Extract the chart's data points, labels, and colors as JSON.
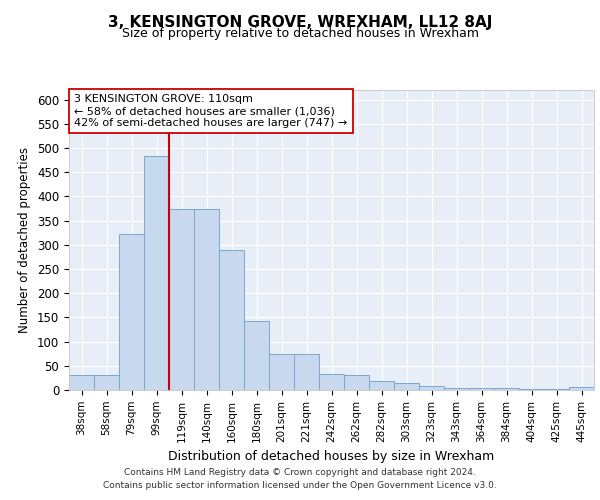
{
  "title": "3, KENSINGTON GROVE, WREXHAM, LL12 8AJ",
  "subtitle": "Size of property relative to detached houses in Wrexham",
  "xlabel": "Distribution of detached houses by size in Wrexham",
  "ylabel": "Number of detached properties",
  "categories": [
    "38sqm",
    "58sqm",
    "79sqm",
    "99sqm",
    "119sqm",
    "140sqm",
    "160sqm",
    "180sqm",
    "201sqm",
    "221sqm",
    "242sqm",
    "262sqm",
    "282sqm",
    "303sqm",
    "323sqm",
    "343sqm",
    "364sqm",
    "384sqm",
    "404sqm",
    "425sqm",
    "445sqm"
  ],
  "values": [
    32,
    32,
    322,
    483,
    375,
    375,
    290,
    143,
    75,
    75,
    34,
    30,
    18,
    15,
    8,
    5,
    5,
    4,
    3,
    3,
    6
  ],
  "bar_color": "#c8d8ee",
  "bar_edge_color": "#7aa8cc",
  "background_color": "#e8eef8",
  "red_line_x": 3.5,
  "annotation_text": "3 KENSINGTON GROVE: 110sqm\n← 58% of detached houses are smaller (1,036)\n42% of semi-detached houses are larger (747) →",
  "annotation_box_color": "#ffffff",
  "annotation_box_edge": "#cc0000",
  "footer_line1": "Contains HM Land Registry data © Crown copyright and database right 2024.",
  "footer_line2": "Contains public sector information licensed under the Open Government Licence v3.0.",
  "ylim": [
    0,
    620
  ],
  "yticks": [
    0,
    50,
    100,
    150,
    200,
    250,
    300,
    350,
    400,
    450,
    500,
    550,
    600
  ]
}
